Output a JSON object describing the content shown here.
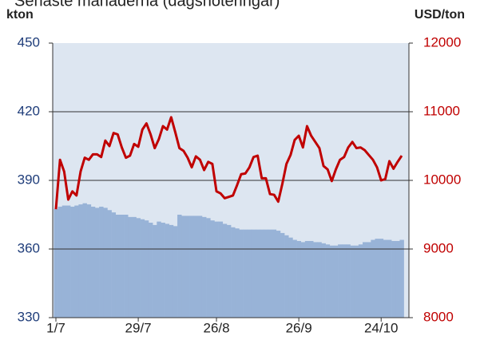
{
  "chart_data": {
    "type": "combo",
    "title": "Senaste månaderna (dagsnoteringar)",
    "ylabel": "kton",
    "y2label": "USD/ton",
    "categories": [
      "1/7",
      null,
      null,
      null,
      null,
      null,
      null,
      null,
      null,
      null,
      null,
      null,
      null,
      null,
      null,
      null,
      null,
      null,
      null,
      null,
      "29/7",
      null,
      null,
      null,
      null,
      null,
      null,
      null,
      null,
      null,
      null,
      null,
      null,
      null,
      null,
      null,
      null,
      null,
      null,
      "26/8",
      null,
      null,
      null,
      null,
      null,
      null,
      null,
      null,
      null,
      null,
      null,
      null,
      null,
      null,
      null,
      null,
      null,
      null,
      null,
      "26/9",
      null,
      null,
      null,
      null,
      null,
      null,
      null,
      null,
      null,
      null,
      null,
      null,
      null,
      null,
      null,
      null,
      null,
      null,
      null,
      "24/10",
      null,
      null,
      null,
      null,
      null
    ],
    "series": [
      {
        "type": "bar",
        "color": "#98b3d7",
        "values": [
          377.5,
          378.5,
          379,
          379,
          378.5,
          379,
          379.5,
          380,
          379.5,
          378.5,
          378,
          378.5,
          378,
          377,
          376,
          375,
          375,
          375,
          374,
          374,
          373.5,
          373,
          372.5,
          371.5,
          370.5,
          372,
          371.5,
          371,
          370.5,
          370,
          375,
          374.5,
          374.5,
          374.5,
          374.5,
          374.5,
          374,
          373.5,
          372.5,
          372,
          372,
          371,
          370.5,
          369.5,
          369,
          368.5,
          368.5,
          368.5,
          368.5,
          368.5,
          368.5,
          368.5,
          368.5,
          368.5,
          368,
          367,
          366,
          365,
          364,
          363.5,
          363,
          363.5,
          363.5,
          363,
          363,
          362.5,
          362,
          361.5,
          361.5,
          362,
          362,
          362,
          361.5,
          361.5,
          362,
          363,
          363,
          364,
          364.5,
          364.5,
          364,
          364,
          363.5,
          363.5,
          364
        ]
      },
      {
        "type": "line",
        "axis": "y2",
        "color": "#c00000",
        "values": [
          9580,
          10300,
          10130,
          9720,
          9840,
          9780,
          10130,
          10330,
          10300,
          10380,
          10380,
          10340,
          10580,
          10500,
          10690,
          10670,
          10480,
          10330,
          10360,
          10530,
          10490,
          10740,
          10830,
          10670,
          10470,
          10600,
          10790,
          10740,
          10920,
          10700,
          10470,
          10430,
          10330,
          10190,
          10350,
          10300,
          10150,
          10270,
          10240,
          9840,
          9810,
          9740,
          9760,
          9780,
          9930,
          10090,
          10100,
          10190,
          10340,
          10360,
          10030,
          10030,
          9800,
          9790,
          9690,
          9950,
          10240,
          10370,
          10590,
          10650,
          10480,
          10790,
          10650,
          10560,
          10470,
          10210,
          10160,
          9990,
          10160,
          10300,
          10340,
          10480,
          10560,
          10470,
          10480,
          10440,
          10370,
          10300,
          10190,
          10000,
          10020,
          10280,
          10170,
          10270,
          10360
        ]
      }
    ],
    "ylim": [
      330,
      450
    ],
    "yticks": [
      330,
      360,
      390,
      420,
      450
    ],
    "y2lim": [
      8000,
      12000
    ],
    "y2ticks": [
      8000,
      9000,
      10000,
      11000,
      12000
    ],
    "grid": true
  }
}
